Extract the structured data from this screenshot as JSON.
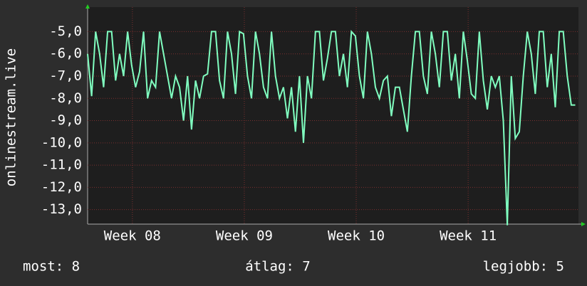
{
  "chart_data": {
    "type": "line",
    "y_label": "onlinestream.live",
    "xlim": [
      0,
      30.7
    ],
    "ylim": [
      -13.65,
      -3.9
    ],
    "xticks": [
      {
        "value": 2.8,
        "label": "Week 08"
      },
      {
        "value": 9.8,
        "label": "Week 09"
      },
      {
        "value": 16.8,
        "label": "Week 10"
      },
      {
        "value": 23.8,
        "label": "Week 11"
      }
    ],
    "yticks": [
      {
        "value": -5,
        "label": "-5,0"
      },
      {
        "value": -6,
        "label": "-6,0"
      },
      {
        "value": -7,
        "label": "-7,0"
      },
      {
        "value": -8,
        "label": "-8,0"
      },
      {
        "value": -9,
        "label": "-9,0"
      },
      {
        "value": -10,
        "label": "-10,0"
      },
      {
        "value": -11,
        "label": "-11,0"
      },
      {
        "value": -12,
        "label": "-12,0"
      },
      {
        "value": -13,
        "label": "-13,0"
      }
    ],
    "grid": true,
    "x": [
      0,
      0.25,
      0.5,
      0.75,
      1,
      1.25,
      1.5,
      1.75,
      2,
      2.25,
      2.5,
      2.75,
      3,
      3.25,
      3.5,
      3.75,
      4,
      4.25,
      4.5,
      4.75,
      5,
      5.25,
      5.5,
      5.75,
      6,
      6.25,
      6.5,
      6.75,
      7,
      7.25,
      7.5,
      7.75,
      8,
      8.25,
      8.5,
      8.75,
      9,
      9.25,
      9.5,
      9.75,
      10,
      10.25,
      10.5,
      10.75,
      11,
      11.25,
      11.5,
      11.75,
      12,
      12.25,
      12.5,
      12.75,
      13,
      13.25,
      13.5,
      13.75,
      14,
      14.25,
      14.5,
      14.75,
      15,
      15.25,
      15.5,
      15.75,
      16,
      16.25,
      16.5,
      16.75,
      17,
      17.25,
      17.5,
      17.75,
      18,
      18.25,
      18.5,
      18.75,
      19,
      19.25,
      19.5,
      19.75,
      20,
      20.25,
      20.5,
      20.75,
      21,
      21.25,
      21.5,
      21.75,
      22,
      22.25,
      22.5,
      22.75,
      23,
      23.25,
      23.5,
      23.75,
      24,
      24.25,
      24.5,
      24.75,
      25,
      25.25,
      25.5,
      25.75,
      26,
      26.25,
      26.5,
      26.75,
      27,
      27.25,
      27.5,
      27.75,
      28,
      28.25,
      28.5,
      28.75,
      29,
      29.25,
      29.5,
      29.75,
      30,
      30.25,
      30.5
    ],
    "series": [
      {
        "color": "#80ffc0",
        "values": [
          -6.0,
          -7.9,
          -5.0,
          -6.0,
          -7.5,
          -5.0,
          -5.0,
          -7.2,
          -6.0,
          -7.0,
          -5.0,
          -6.5,
          -7.5,
          -6.8,
          -5.0,
          -8.0,
          -7.2,
          -7.5,
          -5.0,
          -6.0,
          -7.0,
          -8.0,
          -7.0,
          -7.5,
          -9.0,
          -7.0,
          -9.4,
          -7.2,
          -8.0,
          -7.0,
          -6.9,
          -5.0,
          -5.0,
          -7.2,
          -8.0,
          -5.0,
          -6.0,
          -7.8,
          -5.0,
          -5.1,
          -7.0,
          -8.0,
          -5.0,
          -6.0,
          -7.5,
          -8.0,
          -5.0,
          -7.0,
          -8.0,
          -7.5,
          -8.9,
          -7.5,
          -9.5,
          -7.0,
          -10.0,
          -7.0,
          -8.0,
          -5.0,
          -5.0,
          -7.2,
          -6.2,
          -5.0,
          -5.0,
          -7.0,
          -6.0,
          -7.5,
          -5.0,
          -5.2,
          -7.0,
          -8.0,
          -5.0,
          -6.0,
          -7.5,
          -8.0,
          -7.2,
          -7.0,
          -8.8,
          -7.5,
          -7.5,
          -8.5,
          -9.5,
          -7.0,
          -5.0,
          -5.0,
          -7.0,
          -7.8,
          -5.0,
          -6.0,
          -7.5,
          -5.0,
          -5.0,
          -7.2,
          -6.0,
          -8.0,
          -5.0,
          -6.3,
          -7.8,
          -8.0,
          -5.0,
          -7.2,
          -8.5,
          -7.0,
          -7.5,
          -7.0,
          -9.0,
          -13.7,
          -7.0,
          -9.8,
          -9.5,
          -7.0,
          -5.0,
          -6.0,
          -7.8,
          -5.0,
          -5.0,
          -7.5,
          -6.0,
          -8.4,
          -5.0,
          -5.0,
          -7.0,
          -8.3,
          -8.3
        ]
      }
    ],
    "footer": [
      "most: 8",
      "átlag: 7",
      "legjobb: 5"
    ]
  }
}
